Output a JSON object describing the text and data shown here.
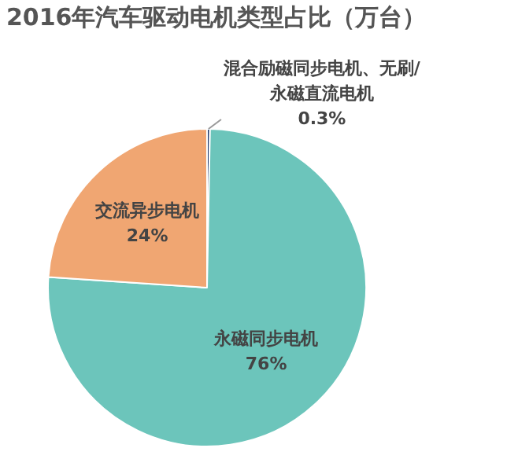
{
  "chart_data": {
    "type": "pie",
    "title": "2016年汽车驱动电机类型占比（万台）",
    "categories": [
      "混合励磁同步电机、无刷/永磁直流电机",
      "永磁同步电机",
      "交流异步电机"
    ],
    "values": [
      0.3,
      76,
      24
    ],
    "colors": [
      "#1f3a6e",
      "#6cc5bb",
      "#f0a672"
    ],
    "value_labels": [
      "0.3%",
      "76%",
      "24%"
    ],
    "legend": false
  }
}
